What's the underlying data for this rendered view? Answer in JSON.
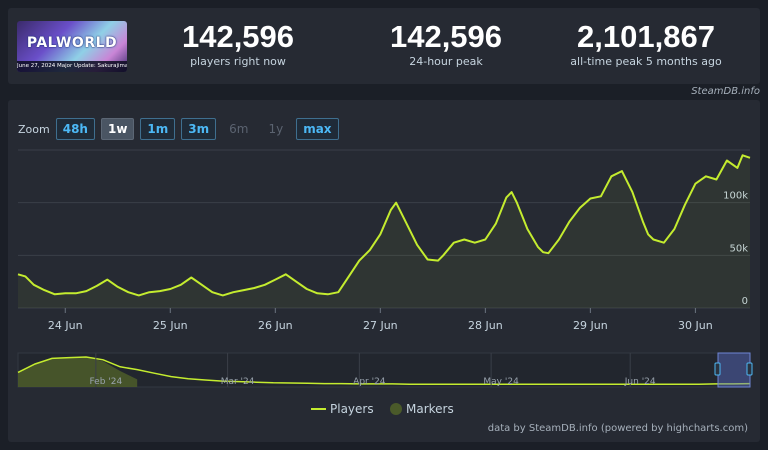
{
  "game": {
    "logo_title": "PALWORLD",
    "logo_caption": "June 27, 2024 Major Update: Sakurajima"
  },
  "stats": [
    {
      "value": "142,596",
      "label": "players right now"
    },
    {
      "value": "142,596",
      "label": "24-hour peak"
    },
    {
      "value": "2,101,867",
      "label": "all-time peak 5 months ago"
    }
  ],
  "credit_top": "SteamDB.info",
  "zoom": {
    "label": "Zoom",
    "buttons": [
      {
        "label": "48h",
        "state": "enabled"
      },
      {
        "label": "1w",
        "state": "active"
      },
      {
        "label": "1m",
        "state": "enabled"
      },
      {
        "label": "3m",
        "state": "enabled"
      },
      {
        "label": "6m",
        "state": "disabled"
      },
      {
        "label": "1y",
        "state": "disabled"
      },
      {
        "label": "max",
        "state": "enabled"
      }
    ]
  },
  "chart_data": {
    "type": "line",
    "colors": {
      "players": "#c4ec2f",
      "markers": "#4a5a2a",
      "grid": "#3a3f48",
      "axis_text": "#c6d4df"
    },
    "y_ticks": [
      "0",
      "50k",
      "100k"
    ],
    "x_tick_labels": [
      "24 Jun",
      "25 Jun",
      "26 Jun",
      "27 Jun",
      "28 Jun",
      "29 Jun",
      "30 Jun"
    ],
    "ylim": [
      0,
      150000
    ],
    "xlim": [
      -0.45,
      6.52
    ],
    "series": [
      {
        "name": "Players",
        "x": [
          -0.45,
          -0.38,
          -0.3,
          -0.2,
          -0.1,
          0.0,
          0.1,
          0.2,
          0.3,
          0.4,
          0.5,
          0.6,
          0.7,
          0.8,
          0.9,
          1.0,
          1.1,
          1.2,
          1.3,
          1.4,
          1.5,
          1.6,
          1.7,
          1.8,
          1.9,
          2.0,
          2.1,
          2.2,
          2.3,
          2.4,
          2.5,
          2.6,
          2.7,
          2.8,
          2.9,
          3.0,
          3.1,
          3.15,
          3.25,
          3.35,
          3.45,
          3.55,
          3.6,
          3.7,
          3.8,
          3.9,
          4.0,
          4.1,
          4.2,
          4.25,
          4.3,
          4.4,
          4.5,
          4.55,
          4.6,
          4.7,
          4.8,
          4.9,
          5.0,
          5.1,
          5.2,
          5.3,
          5.4,
          5.5,
          5.55,
          5.6,
          5.7,
          5.8,
          5.9,
          6.0,
          6.1,
          6.2,
          6.3,
          6.4,
          6.45,
          6.52
        ],
        "values": [
          32000,
          30000,
          22000,
          17000,
          13000,
          14000,
          14000,
          16000,
          21000,
          27000,
          20000,
          15000,
          12000,
          15000,
          16000,
          18000,
          22000,
          29000,
          22000,
          15000,
          12000,
          15000,
          17000,
          19000,
          22000,
          27000,
          32000,
          25000,
          18000,
          14000,
          13000,
          15000,
          30000,
          45000,
          55000,
          70000,
          93000,
          100000,
          80000,
          60000,
          46000,
          45000,
          50000,
          62000,
          65000,
          62000,
          65000,
          80000,
          105000,
          110000,
          100000,
          75000,
          58000,
          53000,
          52000,
          65000,
          82000,
          95000,
          104000,
          106000,
          125000,
          130000,
          110000,
          82000,
          70000,
          65000,
          62000,
          75000,
          98000,
          118000,
          125000,
          122000,
          140000,
          133000,
          145000,
          142600
        ]
      }
    ],
    "navigator": {
      "x_labels": [
        "Feb '24",
        "Mar '24",
        "Apr '24",
        "May '24",
        "Jun '24"
      ],
      "values": [
        0.45,
        0.75,
        0.95,
        0.98,
        1.0,
        0.9,
        0.65,
        0.55,
        0.42,
        0.3,
        0.22,
        0.18,
        0.14,
        0.12,
        0.1,
        0.08,
        0.07,
        0.06,
        0.05,
        0.05,
        0.04,
        0.04,
        0.04,
        0.03,
        0.03,
        0.03,
        0.03,
        0.03,
        0.03,
        0.03,
        0.03,
        0.03,
        0.03,
        0.03,
        0.03,
        0.03,
        0.03,
        0.03,
        0.03,
        0.03,
        0.03,
        0.04,
        0.04,
        0.05
      ],
      "markers": [
        0.45,
        0.75,
        0.95,
        0.98,
        1.0,
        0.85,
        0.5,
        0.2
      ]
    },
    "legend": [
      "Players",
      "Markers"
    ]
  },
  "credit_bottom": "data by SteamDB.info (powered by highcharts.com)"
}
